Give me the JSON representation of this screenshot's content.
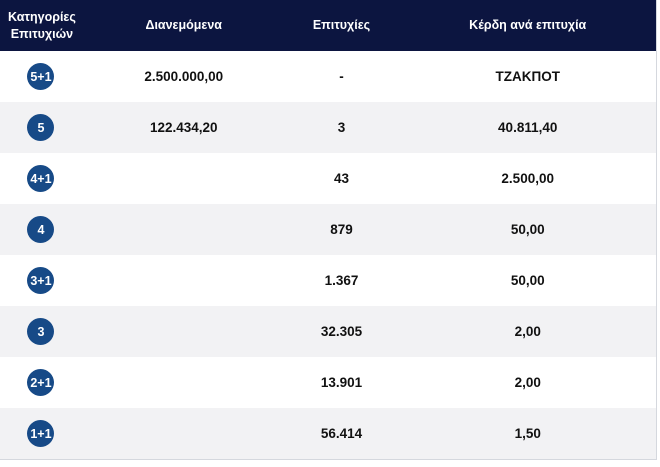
{
  "header": {
    "category_line1": "Κατηγορίες",
    "category_line2": "Επιτυχιών",
    "distributed": "Διανεμόμενα",
    "wins": "Επιτυχίες",
    "prize_per_win": "Κέρδη ανά επιτυχία"
  },
  "rows": [
    {
      "category": "5+1",
      "distributed": "2.500.000,00",
      "wins": "-",
      "prize": "ΤΖΑΚΠΟΤ"
    },
    {
      "category": "5",
      "distributed": "122.434,20",
      "wins": "3",
      "prize": "40.811,40"
    },
    {
      "category": "4+1",
      "distributed": "",
      "wins": "43",
      "prize": "2.500,00"
    },
    {
      "category": "4",
      "distributed": "",
      "wins": "879",
      "prize": "50,00"
    },
    {
      "category": "3+1",
      "distributed": "",
      "wins": "1.367",
      "prize": "50,00"
    },
    {
      "category": "3",
      "distributed": "",
      "wins": "32.305",
      "prize": "2,00"
    },
    {
      "category": "2+1",
      "distributed": "",
      "wins": "13.901",
      "prize": "2,00"
    },
    {
      "category": "1+1",
      "distributed": "",
      "wins": "56.414",
      "prize": "1,50"
    }
  ],
  "colors": {
    "header_bg": "#0c1540",
    "badge_bg": "#174a87",
    "row_alt_bg": "#f2f2f4"
  }
}
